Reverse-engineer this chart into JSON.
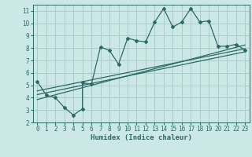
{
  "title": "",
  "xlabel": "Humidex (Indice chaleur)",
  "ylabel": "",
  "bg_color": "#cce8e6",
  "grid_color": "#aaccca",
  "line_color": "#2a6b65",
  "xlim": [
    -0.5,
    23.5
  ],
  "ylim": [
    2,
    11.5
  ],
  "xticks": [
    0,
    1,
    2,
    3,
    4,
    5,
    6,
    7,
    8,
    9,
    10,
    11,
    12,
    13,
    14,
    15,
    16,
    17,
    18,
    19,
    20,
    21,
    22,
    23
  ],
  "yticks": [
    2,
    3,
    4,
    5,
    6,
    7,
    8,
    9,
    10,
    11
  ],
  "scatter_x": [
    0,
    1,
    2,
    3,
    4,
    5,
    5,
    6,
    7,
    8,
    9,
    10,
    11,
    12,
    13,
    14,
    15,
    16,
    17,
    18,
    19,
    20,
    21,
    22,
    23
  ],
  "scatter_y": [
    5.3,
    4.2,
    4.0,
    3.2,
    2.6,
    3.1,
    5.2,
    5.1,
    8.1,
    7.8,
    6.7,
    8.8,
    8.6,
    8.5,
    10.1,
    11.2,
    9.7,
    10.1,
    11.2,
    10.1,
    10.2,
    8.15,
    8.15,
    8.3,
    7.85
  ],
  "line1_x": [
    0,
    23
  ],
  "line1_y": [
    4.55,
    7.95
  ],
  "line2_x": [
    0,
    23
  ],
  "line2_y": [
    3.85,
    8.25
  ],
  "line3_x": [
    0,
    23
  ],
  "line3_y": [
    4.25,
    7.7
  ]
}
